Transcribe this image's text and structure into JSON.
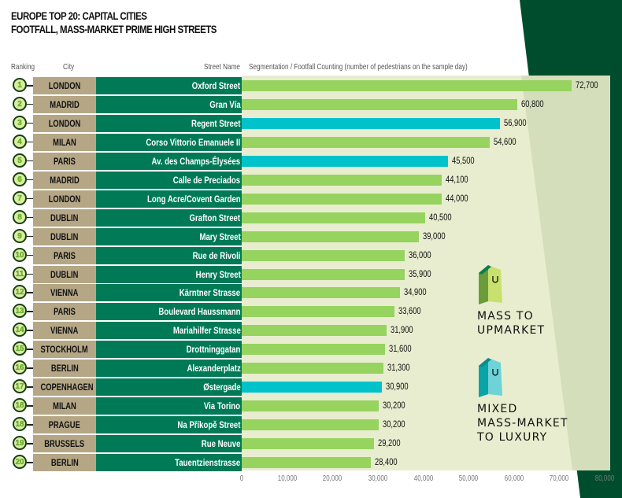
{
  "title": {
    "line1": "EUROPE TOP 20: CAPITAL CITIES",
    "line2": "FOOTFALL, MASS-MARKET PRIME HIGH STREETS"
  },
  "headers": {
    "ranking": "Ranking",
    "city": "City",
    "street": "Street Name",
    "segmentation": "Segmentation / Footfall Counting (number of pedestrians on the sample day)"
  },
  "colors": {
    "mass_to_upmarket": "#96d35f",
    "mixed_to_luxury": "#00c2cb",
    "city_bg": "#b5a786",
    "street_bg": "#007a56",
    "panel_bg": "#e8edcf",
    "dark_green": "#004d2e"
  },
  "legend": [
    {
      "key": "mass_to_upmarket",
      "icon": "shopping-bag-icon",
      "lines": [
        "MASS TO",
        "UPMARKET"
      ]
    },
    {
      "key": "mixed_to_luxury",
      "icon": "shopping-bag-icon",
      "lines": [
        "MIXED",
        "MASS-MARKET",
        "TO LUXURY"
      ]
    }
  ],
  "chart_data": {
    "type": "bar",
    "orientation": "horizontal",
    "title": "EUROPE TOP 20: CAPITAL CITIES — FOOTFALL, MASS-MARKET PRIME HIGH STREETS",
    "xlabel": "Segmentation / Footfall Counting (number of pedestrians on the sample day)",
    "xlim": [
      0,
      80000
    ],
    "xticks": [
      0,
      10000,
      20000,
      30000,
      40000,
      50000,
      60000,
      70000,
      80000
    ],
    "xtick_labels": [
      "0",
      "10,000",
      "20,000",
      "30,000",
      "40,000",
      "50,000",
      "60,000",
      "70,000",
      "80,000"
    ],
    "grid": false,
    "legend_position": "right",
    "rows": [
      {
        "rank": "1",
        "city": "LONDON",
        "street": "Oxford Street",
        "value": 72700,
        "label": "72,700",
        "segment": "mass_to_upmarket"
      },
      {
        "rank": "2",
        "city": "MADRID",
        "street": "Gran Vía",
        "value": 60800,
        "label": "60,800",
        "segment": "mass_to_upmarket"
      },
      {
        "rank": "3",
        "city": "LONDON",
        "street": "Regent Street",
        "value": 56900,
        "label": "56,900",
        "segment": "mixed_to_luxury"
      },
      {
        "rank": "4",
        "city": "MILAN",
        "street": "Corso Vittorio Emanuele II",
        "value": 54600,
        "label": "54,600",
        "segment": "mass_to_upmarket"
      },
      {
        "rank": "5",
        "city": "PARIS",
        "street": "Av. des Champs-Élysées",
        "value": 45500,
        "label": "45,500",
        "segment": "mixed_to_luxury"
      },
      {
        "rank": "6",
        "city": "MADRID",
        "street": "Calle de Preciados",
        "value": 44100,
        "label": "44,100",
        "segment": "mass_to_upmarket"
      },
      {
        "rank": "7",
        "city": "LONDON",
        "street": "Long Acre/Covent Garden",
        "value": 44000,
        "label": "44,000",
        "segment": "mass_to_upmarket"
      },
      {
        "rank": "8",
        "city": "DUBLIN",
        "street": "Grafton Street",
        "value": 40500,
        "label": "40,500",
        "segment": "mass_to_upmarket"
      },
      {
        "rank": "9",
        "city": "DUBLIN",
        "street": "Mary Street",
        "value": 39000,
        "label": "39,000",
        "segment": "mass_to_upmarket"
      },
      {
        "rank": "10",
        "city": "PARIS",
        "street": "Rue de Rivoli",
        "value": 36000,
        "label": "36,000",
        "segment": "mass_to_upmarket"
      },
      {
        "rank": "11",
        "city": "DUBLIN",
        "street": "Henry Street",
        "value": 35900,
        "label": "35,900",
        "segment": "mass_to_upmarket"
      },
      {
        "rank": "12",
        "city": "VIENNA",
        "street": "Kärntner Strasse",
        "value": 34900,
        "label": "34,900",
        "segment": "mass_to_upmarket"
      },
      {
        "rank": "13",
        "city": "PARIS",
        "street": "Boulevard Haussmann",
        "value": 33600,
        "label": "33,600",
        "segment": "mass_to_upmarket"
      },
      {
        "rank": "14",
        "city": "VIENNA",
        "street": "Mariahilfer Strasse",
        "value": 31900,
        "label": "31,900",
        "segment": "mass_to_upmarket"
      },
      {
        "rank": "15",
        "city": "STOCKHOLM",
        "street": "Drottninggatan",
        "value": 31600,
        "label": "31,600",
        "segment": "mass_to_upmarket"
      },
      {
        "rank": "16",
        "city": "BERLIN",
        "street": "Alexanderplatz",
        "value": 31300,
        "label": "31,300",
        "segment": "mass_to_upmarket"
      },
      {
        "rank": "17",
        "city": "COPENHAGEN",
        "street": "Østergade",
        "value": 30900,
        "label": "30,900",
        "segment": "mixed_to_luxury"
      },
      {
        "rank": "18",
        "city": "MILAN",
        "street": "Via Torino",
        "value": 30200,
        "label": "30,200",
        "segment": "mass_to_upmarket"
      },
      {
        "rank": "18",
        "city": "PRAGUE",
        "street": "Na Příkopě Street",
        "value": 30200,
        "label": "30,200",
        "segment": "mass_to_upmarket"
      },
      {
        "rank": "19",
        "city": "BRUSSELS",
        "street": "Rue Neuve",
        "value": 29200,
        "label": "29,200",
        "segment": "mass_to_upmarket"
      },
      {
        "rank": "20",
        "city": "BERLIN",
        "street": "Tauentzienstrasse",
        "value": 28400,
        "label": "28,400",
        "segment": "mass_to_upmarket"
      }
    ]
  }
}
